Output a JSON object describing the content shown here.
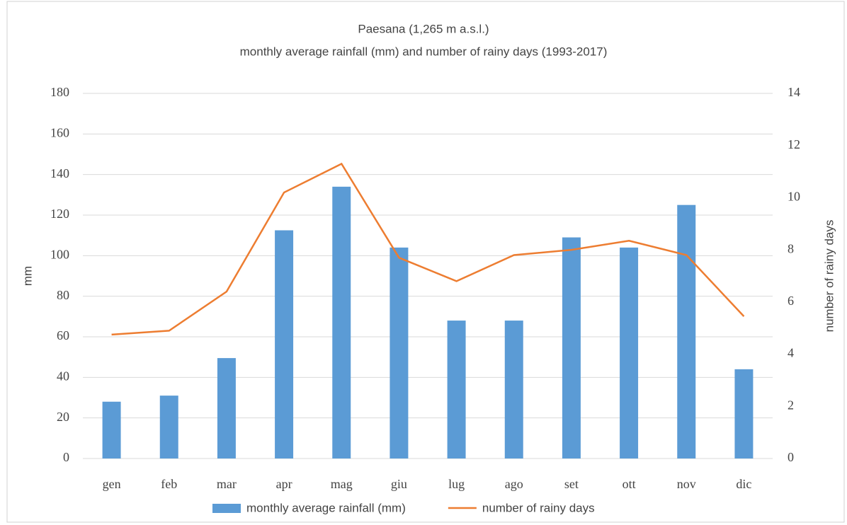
{
  "chart_data": {
    "type": "bar_line",
    "title": "Paesana (1,265 m a.s.l.)",
    "subtitle": "monthly average rainfall (mm) and number of rainy days (1993-2017)",
    "y_label": "mm",
    "y2_label": "number of rainy days",
    "categories": [
      "gen",
      "feb",
      "mar",
      "apr",
      "mag",
      "giu",
      "lug",
      "ago",
      "set",
      "ott",
      "nov",
      "dic"
    ],
    "series": [
      {
        "name": "monthly average rainfall (mm)",
        "type": "bar",
        "color": "#5b9bd5",
        "values": [
          28,
          31,
          49.5,
          112.5,
          134,
          104,
          68,
          68,
          109,
          104,
          125,
          44
        ]
      },
      {
        "name": "number of rainy days",
        "type": "line",
        "axis": "y2",
        "color": "#ed7d31",
        "values": [
          4.75,
          4.9,
          6.4,
          10.2,
          11.3,
          7.7,
          6.8,
          7.8,
          8.0,
          8.35,
          7.8,
          5.45
        ]
      }
    ],
    "ylim": [
      0,
      180
    ],
    "yticks": [
      0,
      20,
      40,
      60,
      80,
      100,
      120,
      140,
      160,
      180
    ],
    "y2lim": [
      0,
      14
    ],
    "y2ticks": [
      0,
      2,
      4,
      6,
      8,
      10,
      12,
      14
    ],
    "grid": true,
    "legend": "bottom"
  }
}
